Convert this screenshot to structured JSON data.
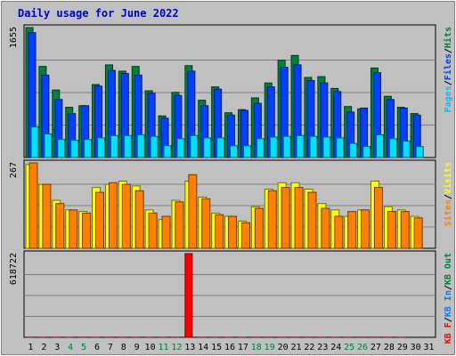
{
  "chart_data": {
    "type": "bar",
    "title": "Daily usage for June 2022",
    "days": [
      "1",
      "2",
      "3",
      "4",
      "5",
      "6",
      "7",
      "8",
      "9",
      "10",
      "11",
      "12",
      "13",
      "14",
      "15",
      "16",
      "17",
      "18",
      "19",
      "20",
      "21",
      "22",
      "23",
      "24",
      "25",
      "26",
      "27",
      "28",
      "29",
      "30",
      "31"
    ],
    "weekend_days": [
      "4",
      "5",
      "11",
      "12",
      "18",
      "19",
      "25",
      "26"
    ],
    "panels": [
      {
        "id": "hits-files-pages",
        "ymax_label": "1655",
        "ymax": 1655,
        "side_labels": [
          {
            "text": "Pages",
            "color": "#00c0ff"
          },
          {
            "text": "/",
            "color": "#000000"
          },
          {
            "text": "Files",
            "color": "#0040ff"
          },
          {
            "text": "/",
            "color": "#000000"
          },
          {
            "text": "Hits",
            "color": "#008040"
          }
        ],
        "series": [
          {
            "name": "Hits",
            "color": "#008040",
            "values": [
              1655,
              1160,
              860,
              640,
              660,
              930,
              1180,
              1100,
              1160,
              850,
              530,
              830,
              1170,
              730,
              900,
              570,
              610,
              760,
              950,
              1240,
              1300,
              1020,
              1030,
              880,
              650,
              620,
              1140,
              780,
              640,
              560,
              0
            ]
          },
          {
            "name": "Files",
            "color": "#0040ff",
            "values": [
              1590,
              1050,
              740,
              560,
              660,
              910,
              1110,
              1070,
              1050,
              820,
              500,
              790,
              1100,
              660,
              870,
              540,
              600,
              690,
              900,
              1150,
              1180,
              980,
              950,
              840,
              580,
              630,
              1080,
              740,
              630,
              540,
              0
            ]
          },
          {
            "name": "Pages",
            "color": "#00e0ff",
            "values": [
              390,
              300,
              230,
              220,
              230,
              250,
              280,
              280,
              290,
              270,
              150,
              240,
              280,
              250,
              250,
              150,
              150,
              240,
              260,
              270,
              280,
              270,
              260,
              250,
              180,
              140,
              290,
              240,
              210,
              140,
              0
            ]
          }
        ]
      },
      {
        "id": "visits-sites",
        "ymax_label": "267",
        "ymax": 267,
        "side_labels": [
          {
            "text": "Sites",
            "color": "#ff8000"
          },
          {
            "text": "/",
            "color": "#000000"
          },
          {
            "text": "Visits",
            "color": "#ffff00"
          }
        ],
        "series": [
          {
            "name": "Visits",
            "color": "#ffff00",
            "values": [
              262,
              200,
              150,
              120,
              115,
              190,
              200,
              210,
              195,
              120,
              90,
              150,
              210,
              160,
              110,
              100,
              85,
              130,
              185,
              205,
              205,
              185,
              140,
              120,
              100,
              120,
              210,
              130,
              120,
              100,
              0
            ]
          },
          {
            "name": "Sites",
            "color": "#ff8000",
            "values": [
              267,
              200,
              140,
              120,
              110,
              175,
              205,
              200,
              180,
              110,
              100,
              145,
              230,
              155,
              105,
              100,
              80,
              125,
              180,
              190,
              190,
              175,
              125,
              100,
              115,
              120,
              190,
              115,
              115,
              95,
              0
            ]
          }
        ]
      },
      {
        "id": "kbin-kbout-kbf",
        "ymax_label": "618722",
        "ymax": 618722,
        "side_labels": [
          {
            "text": "KB F",
            "color": "#ff0000"
          },
          {
            "text": "/",
            "color": "#000000"
          },
          {
            "text": "KB In",
            "color": "#0080ff"
          },
          {
            "text": "/",
            "color": "#000000"
          },
          {
            "text": "KB Out",
            "color": "#008040"
          }
        ],
        "series": [
          {
            "name": "KB F",
            "color": "#ff0000",
            "values": [
              440,
              405,
              370,
              250,
              460,
              260,
              370,
              385,
              330,
              170,
              190,
              335,
              618722,
              290,
              330,
              115,
              115,
              385,
              375,
              405,
              380,
              405,
              290,
              190,
              255,
              542,
              585,
              378,
              190,
              0,
              0
            ]
          }
        ]
      }
    ]
  }
}
